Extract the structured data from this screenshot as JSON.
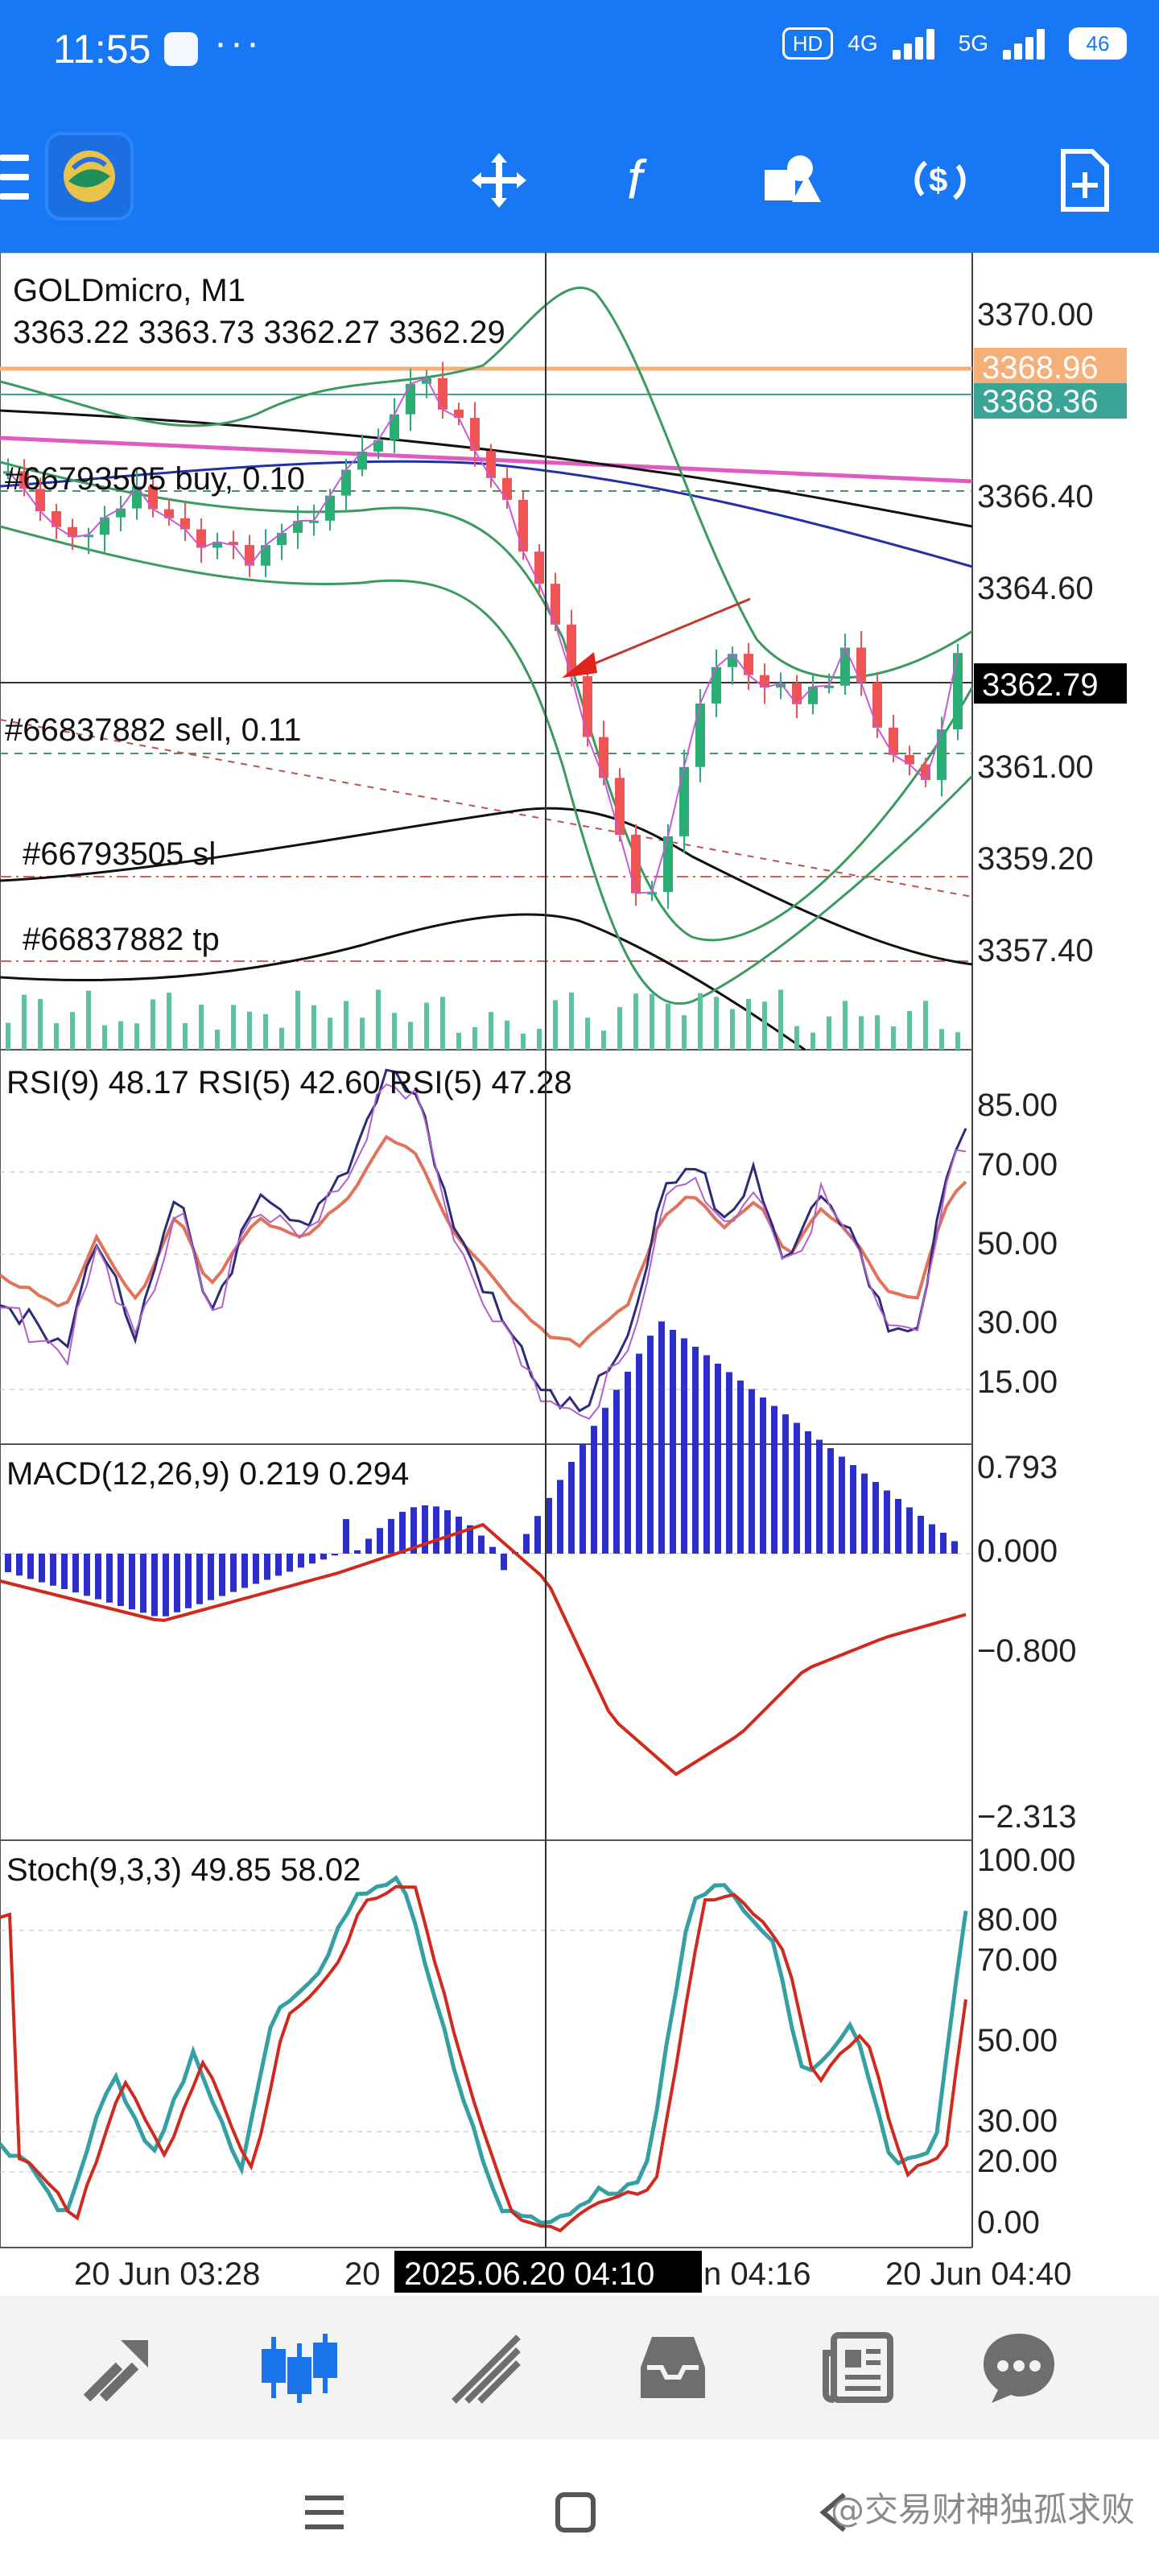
{
  "status_bar": {
    "time": "11:55",
    "hd_badge": "HD",
    "net1": "4G",
    "net2": "5G",
    "battery": "46",
    "icons": [
      "app-notification-icon",
      "overflow-dots-icon",
      "signal-icon",
      "battery-icon"
    ]
  },
  "toolbar": {
    "icons": [
      "menu-icon",
      "metatrader-logo-icon",
      "crosshair-icon",
      "indicator-f-icon",
      "objects-icon",
      "trade-dollar-icon",
      "new-order-icon"
    ]
  },
  "chart": {
    "symbol_title": "GOLDmicro, M1",
    "ohlc": "3363.22 3363.73 3362.27 3362.29",
    "price_labels": [
      "3370.00",
      "3366.40",
      "3364.60",
      "3361.00",
      "3359.20",
      "3357.40"
    ],
    "tag_ask": "3368.96",
    "tag_bid": "3368.36",
    "tag_cursor": "3362.79",
    "order_buy": "#66793505 buy, 0.10",
    "order_sell": "#66837882 sell, 0.11",
    "order_sl": "#66793505 sl",
    "order_tp": "#66837882 tp",
    "colors": {
      "bull": "#2bae74",
      "bear": "#ef5354",
      "ask": "#f5b07a",
      "bid": "#3aa597",
      "magenta": "#e05bbf",
      "navy": "#2231a8"
    }
  },
  "rsi": {
    "title": "RSI(9) 48.17 RSI(5) 42.60 RSI(5) 47.28",
    "labels": [
      "85.00",
      "70.00",
      "50.00",
      "30.00",
      "15.00"
    ]
  },
  "macd": {
    "title": "MACD(12,26,9) 0.219 0.294",
    "labels": [
      "0.793",
      "0.000",
      "−0.800",
      "−2.313"
    ]
  },
  "stoch": {
    "title": "Stoch(9,3,3) 49.85 58.02",
    "labels": [
      "100.00",
      "80.00",
      "70.00",
      "50.00",
      "30.00",
      "20.00",
      "0.00"
    ]
  },
  "time_axis": {
    "labels": [
      "20 Jun 03:28",
      "20",
      "n 04:16",
      "20 Jun 04:40"
    ],
    "cursor_time": "2025.06.20 04:10"
  },
  "bottom_nav": {
    "icons": [
      "quotes-arrow-icon",
      "chart-candles-icon",
      "trade-icon",
      "history-inbox-icon",
      "news-icon",
      "chat-icon"
    ],
    "active": "chart-candles-icon",
    "active_color": "#1a73e8"
  },
  "system_nav": {
    "icons": [
      "menu-lines-icon",
      "home-square-icon",
      "back-icon"
    ],
    "watermark": "@交易财神独孤求败"
  }
}
